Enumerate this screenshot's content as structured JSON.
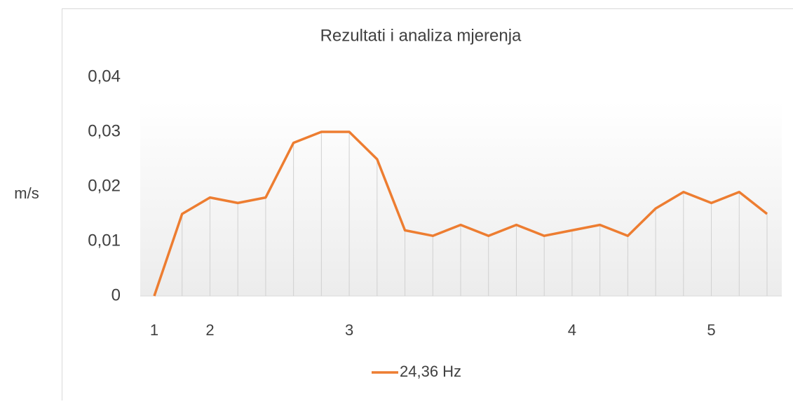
{
  "chart_data": {
    "type": "line",
    "title": "Rezultati i analiza mjerenja",
    "y_label": "m/s",
    "categories": [
      "1",
      null,
      "2",
      null,
      null,
      null,
      null,
      "3",
      null,
      null,
      null,
      null,
      null,
      null,
      null,
      "4",
      null,
      null,
      null,
      null,
      "5",
      null,
      null
    ],
    "series": [
      {
        "name": "24,36 Hz",
        "color": "#ed7d31",
        "values": [
          0,
          0.015,
          0.018,
          0.017,
          0.018,
          0.028,
          0.03,
          0.03,
          0.025,
          0.012,
          0.011,
          0.013,
          0.011,
          0.013,
          0.011,
          0.012,
          0.013,
          0.011,
          0.016,
          0.019,
          0.017,
          0.019,
          0.015
        ]
      }
    ],
    "ylim": [
      0,
      0.04
    ],
    "yticks": [
      0,
      {
        "value": 0.01,
        "label": "0,01"
      },
      {
        "value": 0.02,
        "label": "0,02"
      },
      {
        "value": 0.03,
        "label": "0,03"
      },
      {
        "value": 0.04,
        "label": "0,04"
      }
    ],
    "legend": "bottom"
  }
}
